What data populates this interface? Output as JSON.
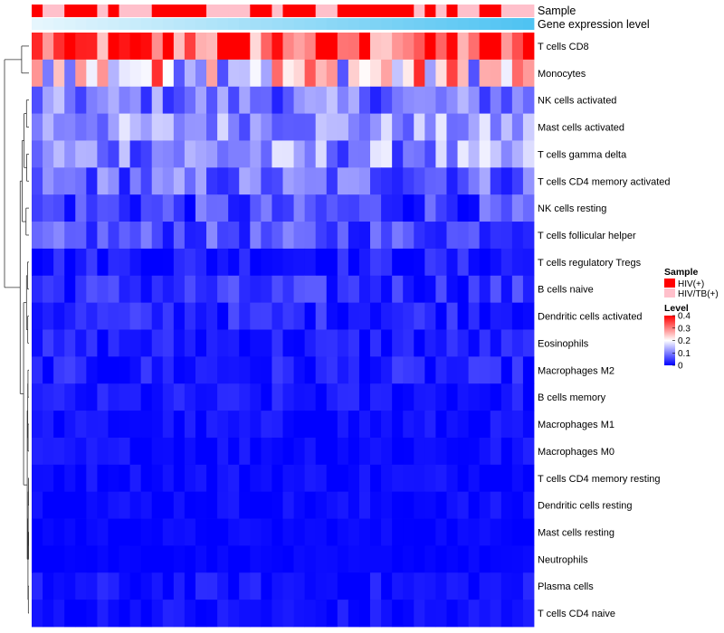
{
  "chart_data": {
    "type": "heatmap",
    "annotation_labels": {
      "sample": "Sample",
      "gene_expression": "Gene expression level"
    },
    "rows": [
      "T cells CD8",
      "Monocytes",
      "NK cells activated",
      "Mast cells activated",
      "T cells gamma delta",
      "T cells CD4 memory activated",
      "NK cells resting",
      "T cells follicular helper",
      "T cells regulatory  Tregs",
      "B cells naive",
      "Dendritic cells activated",
      "Eosinophils",
      "Macrophages M2",
      "B cells memory",
      "Macrophages M1",
      "Macrophages M0",
      "T cells CD4 memory resting",
      "Dendritic cells resting",
      "Mast cells resting",
      "Neutrophils",
      "Plasma cells",
      "T cells CD4 naive"
    ],
    "n_columns": 46,
    "sample_groups": [
      "HIV(+)",
      "HIV/TB(+)",
      "HIV/TB(+)",
      "HIV(+)",
      "HIV(+)",
      "HIV(+)",
      "HIV/TB(+)",
      "HIV(+)",
      "HIV/TB(+)",
      "HIV/TB(+)",
      "HIV/TB(+)",
      "HIV(+)",
      "HIV(+)",
      "HIV(+)",
      "HIV(+)",
      "HIV(+)",
      "HIV/TB(+)",
      "HIV/TB(+)",
      "HIV/TB(+)",
      "HIV/TB(+)",
      "HIV(+)",
      "HIV(+)",
      "HIV/TB(+)",
      "HIV(+)",
      "HIV(+)",
      "HIV(+)",
      "HIV/TB(+)",
      "HIV/TB(+)",
      "HIV(+)",
      "HIV(+)",
      "HIV(+)",
      "HIV(+)",
      "HIV(+)",
      "HIV(+)",
      "HIV(+)",
      "HIV/TB(+)",
      "HIV(+)",
      "HIV/TB(+)",
      "HIV(+)",
      "HIV/TB(+)",
      "HIV/TB(+)",
      "HIV(+)",
      "HIV(+)",
      "HIV/TB(+)",
      "HIV/TB(+)",
      "HIV/TB(+)"
    ],
    "row_mean_levels": [
      0.33,
      0.22,
      0.09,
      0.12,
      0.11,
      0.08,
      0.05,
      0.06,
      0.02,
      0.035,
      0.03,
      0.02,
      0.02,
      0.015,
      0.01,
      0.01,
      0.01,
      0.008,
      0.005,
      0.003,
      0.012,
      0.01
    ],
    "row_spread": [
      0.08,
      0.1,
      0.04,
      0.04,
      0.05,
      0.04,
      0.035,
      0.03,
      0.02,
      0.025,
      0.02,
      0.018,
      0.02,
      0.015,
      0.012,
      0.012,
      0.01,
      0.01,
      0.006,
      0.004,
      0.015,
      0.014
    ],
    "color_scale": {
      "min": 0,
      "mid": 0.2,
      "max": 0.4,
      "low_color": "#0000ff",
      "mid_color": "#ffffff",
      "high_color": "#ff0000"
    },
    "legends": {
      "sample": {
        "title": "Sample",
        "entries": [
          {
            "label": "HIV(+)",
            "color": "#ff0000"
          },
          {
            "label": "HIV/TB(+)",
            "color": "#ffc0cb"
          }
        ]
      },
      "level": {
        "title": "Level",
        "ticks": [
          "0.4",
          "0.3",
          "0.2",
          "0.1",
          "0"
        ],
        "tick_values": [
          0.4,
          0.3,
          0.2,
          0.1,
          0
        ]
      }
    },
    "gene_expression_colors": {
      "start": "#e6f6fd",
      "end": "#4fc3f2"
    }
  }
}
